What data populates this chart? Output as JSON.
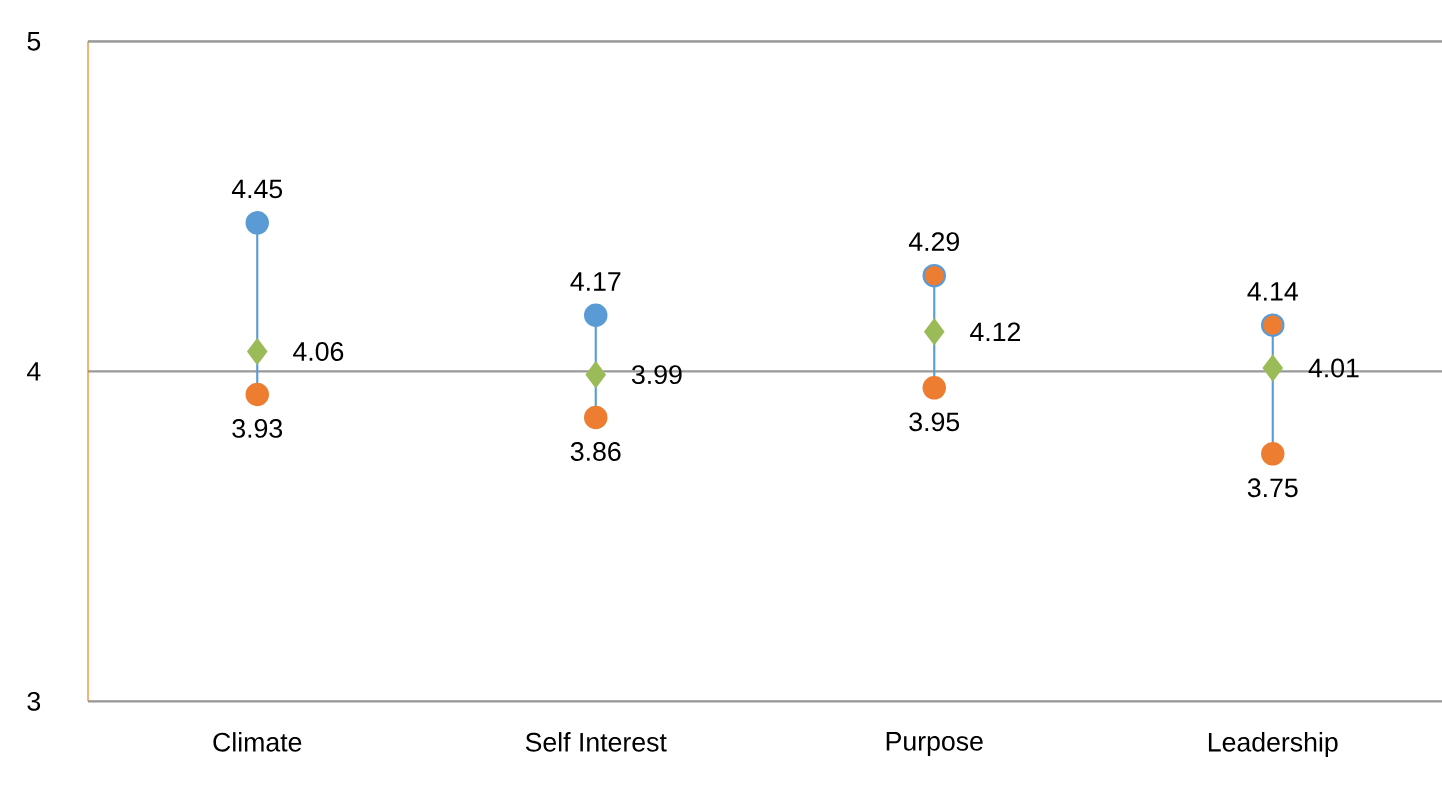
{
  "chart_data": {
    "type": "scatter",
    "categories": [
      "Climate",
      "Self Interest",
      "Purpose",
      "Leadership"
    ],
    "series": [
      {
        "name": null,
        "color": "#5b9bd5",
        "colors": [
          "#5b9bd5",
          "#5b9bd5",
          "#ed7d31",
          "#ed7d31"
        ],
        "values": [
          4.45,
          4.17,
          4.29,
          4.14
        ],
        "marker": "circle"
      },
      {
        "name": null,
        "color": "#ed7d31",
        "values": [
          3.93,
          3.86,
          3.95,
          3.75
        ],
        "marker": "circle"
      },
      {
        "name": null,
        "color": "#9bbb59",
        "values": [
          4.06,
          3.99,
          4.12,
          4.01
        ],
        "marker": "diamond"
      }
    ],
    "ylim": [
      3,
      5
    ],
    "yticks": [
      3,
      4,
      5
    ],
    "grid": "y",
    "data_labels": true
  }
}
